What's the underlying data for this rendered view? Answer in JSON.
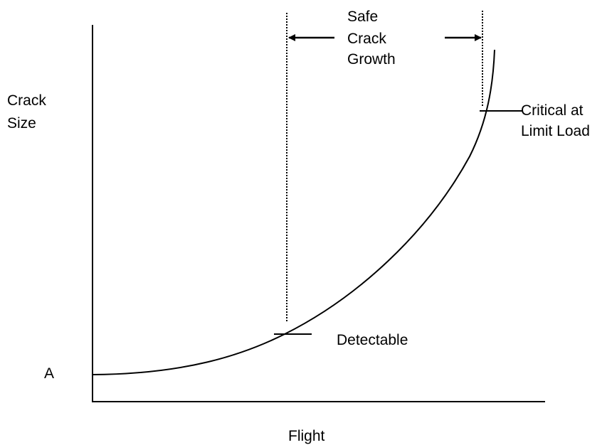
{
  "y_axis_label": [
    "Crack",
    "Size"
  ],
  "y_origin_label": "A",
  "x_axis_label": "Flight",
  "interval_label": [
    "Safe",
    "Crack",
    "Growth"
  ],
  "detectable_label": "Detectable",
  "critical_label": [
    "Critical at",
    "Limit Load"
  ]
}
